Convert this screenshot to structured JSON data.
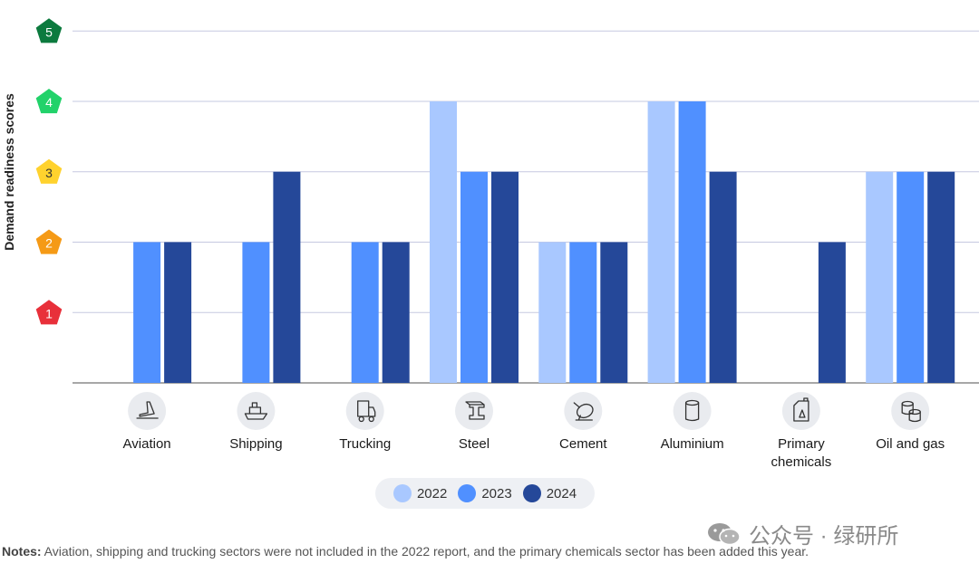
{
  "chart_data": {
    "type": "bar",
    "ylabel": "Demand readiness scores",
    "ylim": [
      0,
      5
    ],
    "yticks": [
      "1",
      "2",
      "3",
      "4",
      "5"
    ],
    "categories": [
      "Aviation",
      "Shipping",
      "Trucking",
      "Steel",
      "Cement",
      "Aluminium",
      "Primary chemicals",
      "Oil and gas"
    ],
    "category_icons": [
      "airplane-icon",
      "ship-icon",
      "truck-icon",
      "steel-beam-icon",
      "cement-mixer-icon",
      "aluminium-can-icon",
      "chemical-canister-icon",
      "oil-barrel-icon"
    ],
    "series": [
      {
        "name": "2022",
        "color": "#a9c8ff",
        "values": [
          null,
          null,
          null,
          4,
          2,
          4,
          null,
          3
        ]
      },
      {
        "name": "2023",
        "color": "#5090ff",
        "values": [
          2,
          2,
          2,
          3,
          2,
          4,
          null,
          3
        ]
      },
      {
        "name": "2024",
        "color": "#254899",
        "values": [
          2,
          3,
          2,
          3,
          2,
          3,
          2,
          3
        ]
      }
    ],
    "tick_badge_colors": {
      "1": "#e8303a",
      "2": "#f59a16",
      "3": "#ffd22e",
      "4": "#22d26a",
      "5": "#0c7a3e"
    }
  },
  "legend": [
    {
      "label": "2022",
      "color": "#a9c8ff"
    },
    {
      "label": "2023",
      "color": "#5090ff"
    },
    {
      "label": "2024",
      "color": "#254899"
    }
  ],
  "notes": {
    "prefix": "Notes:",
    "text": " Aviation, shipping and trucking sectors were not included in the 2022 report, and the primary chemicals sector has been added this year."
  },
  "watermark": "公众号 · 绿研所"
}
